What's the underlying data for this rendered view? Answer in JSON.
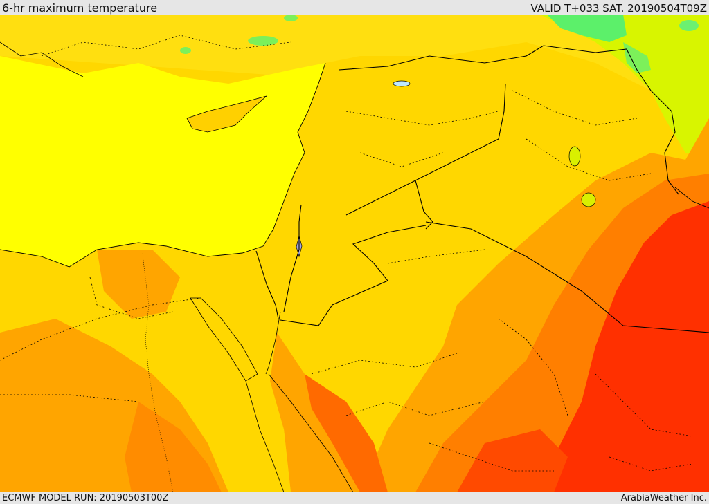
{
  "header": {
    "title": "6-hr maximum temperature",
    "valid": "VALID T+033 SAT. 20190504T09Z"
  },
  "footer": {
    "model_run": "ECMWF MODEL RUN: 20190503T00Z",
    "credit": "ArabiaWeather Inc."
  },
  "map": {
    "colors": {
      "sea": "#ffff00",
      "warm": "#ffd700",
      "hot": "#ffa500",
      "very_hot": "#ff7f00",
      "extreme": "#ff3000",
      "cool": "#b8f000",
      "cold": "#2ee88a",
      "border": "#000000"
    }
  }
}
